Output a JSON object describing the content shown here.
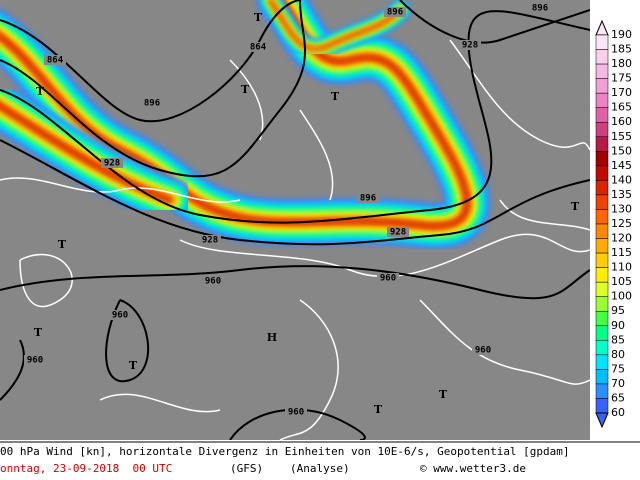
{
  "map": {
    "contour_labels": [
      "864",
      "864",
      "896",
      "896",
      "896",
      "928",
      "928",
      "928",
      "928",
      "896",
      "960",
      "960",
      "960",
      "960",
      "960",
      "960"
    ],
    "markers": [
      "T",
      "T",
      "T",
      "T",
      "T",
      "T",
      "T",
      "T",
      "T",
      "H",
      "T"
    ]
  },
  "colorbar": {
    "labels": [
      190,
      185,
      180,
      175,
      170,
      165,
      160,
      155,
      150,
      145,
      140,
      135,
      130,
      125,
      120,
      115,
      110,
      105,
      100,
      95,
      90,
      85,
      80,
      75,
      70,
      65,
      60
    ],
    "colors": [
      "#fbe6f6",
      "#f8d0ee",
      "#f5b8e5",
      "#f0a0d8",
      "#ee80c4",
      "#e060a8",
      "#d04080",
      "#b81848",
      "#a00000",
      "#c00a00",
      "#dd2200",
      "#ee4400",
      "#ff6600",
      "#ff8800",
      "#ffaa00",
      "#ffcc00",
      "#ffee00",
      "#ddff22",
      "#99ff33",
      "#44ff44",
      "#00ff88",
      "#00ffcc",
      "#00e5ff",
      "#00bfff",
      "#2a8fff",
      "#3a60ff"
    ]
  },
  "caption": {
    "line1": "00 hPa Wind [kn], horizontale Divergenz in Einheiten von 10E-6/s, Geopotential [gpdam]",
    "date": "onntag, 23-09-2018  00 UTC",
    "model": "(GFS)",
    "run": "(Analyse)",
    "credit": "© www.wetter3.de"
  }
}
